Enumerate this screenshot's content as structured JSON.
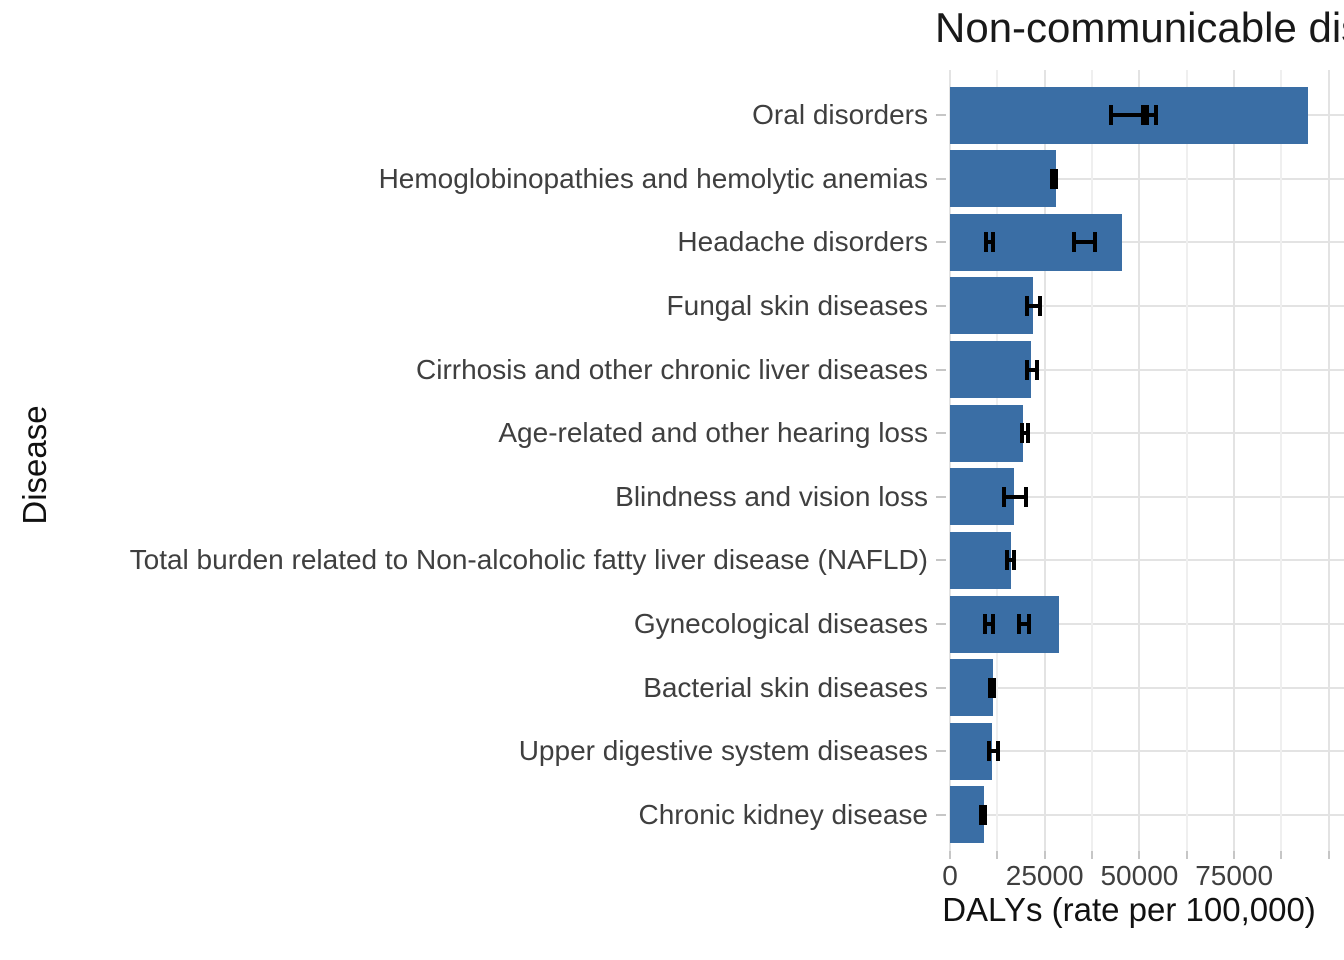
{
  "chart_data": {
    "type": "bar",
    "orientation": "horizontal",
    "title": "Non-communicable diseases",
    "title_visible_portion": "Non-communicable d",
    "xlabel": "DALYs (rate per 100,000)",
    "ylabel": "Disease",
    "categories": [
      "Oral disorders",
      "Hemoglobinopathies and hemolytic anemias",
      "Headache disorders",
      "Fungal skin diseases",
      "Cirrhosis and other chronic liver diseases",
      "Age-related and other hearing loss",
      "Blindness and vision loss",
      "Total burden related to Non-alcoholic fatty liver disease (NAFLD)",
      "Gynecological diseases",
      "Bacterial skin diseases",
      "Upper digestive system diseases",
      "Chronic kidney disease"
    ],
    "values": [
      94400,
      27900,
      45500,
      21800,
      21500,
      19400,
      16800,
      16000,
      28900,
      11300,
      11200,
      8850
    ],
    "error_bars": [
      [
        [
          42100,
          51400
        ],
        [
          51400,
          54800
        ]
      ],
      [
        [
          26300,
          28400
        ]
      ],
      [
        [
          9100,
          11800
        ],
        [
          32300,
          38700
        ]
      ],
      [
        [
          19700,
          24200
        ]
      ],
      [
        [
          19700,
          23600
        ]
      ],
      [
        [
          18400,
          21000
        ]
      ],
      [
        [
          13600,
          20700
        ]
      ],
      [
        [
          14400,
          17300
        ]
      ],
      [
        [
          8600,
          11800
        ],
        [
          17600,
          21500
        ]
      ],
      [
        [
          10100,
          12200
        ]
      ],
      [
        [
          9700,
          13100
        ]
      ],
      [
        [
          7600,
          9900
        ]
      ]
    ],
    "x_tick_labels": [
      "0",
      "25000",
      "50000",
      "75000"
    ],
    "x_major_ticks": [
      0,
      25000,
      50000,
      75000,
      100000
    ],
    "x_minor_ticks": [
      12500,
      37500,
      62500,
      87500
    ],
    "xlim": [
      0,
      104000
    ],
    "grid": true,
    "legend": "none",
    "colors": {
      "bar": "#3A6EA5",
      "error_bar": "#000000",
      "grid_major": "#E3E3E3",
      "grid_minor": "#EFEFEF",
      "tick_mark": "#C6C6C6",
      "axis_text": "#3F3F3F",
      "title_text": "#191919"
    }
  }
}
